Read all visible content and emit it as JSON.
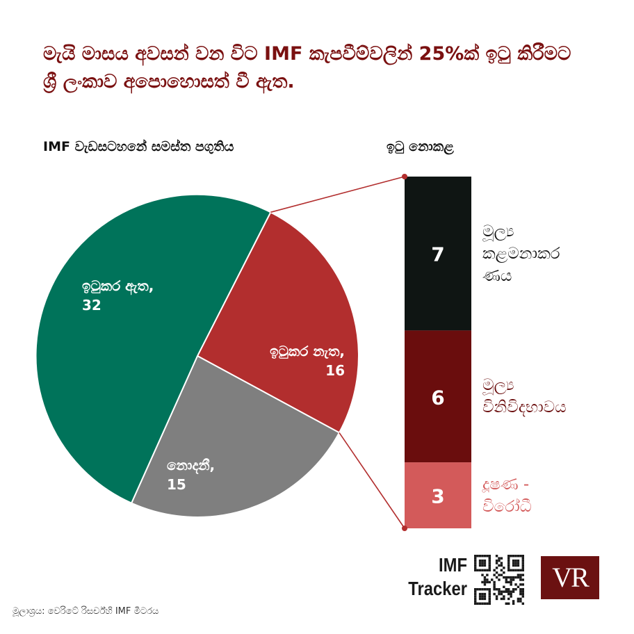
{
  "title": "මැයි මාසය අවසන් වන විට IMF කැපවීම්වලින් 25%ක් ඉටු කිරීමට ශ්‍රී ලංකාව අපොහොසත් වී ඇත.",
  "subtitle_left": "IMF වැඩසටහනේ සමස්ත පගුතිය",
  "subtitle_right": "ඉටු නොකළ",
  "colors": {
    "title": "#7a1010",
    "green": "#00735a",
    "red": "#b22e2e",
    "gray": "#7f7f7f",
    "black": "#0f1513",
    "maroon": "#6a0d0d",
    "salmon": "#d35a5a"
  },
  "chart_data": [
    {
      "type": "pie",
      "title": "IMF වැඩසටහනේ සමස්ත පගුතිය",
      "slices": [
        {
          "label": "ඉටුකර නැත,",
          "value": 16,
          "color": "#b22e2e"
        },
        {
          "label": "නොදනී,",
          "value": 15,
          "color": "#7f7f7f"
        },
        {
          "label": "ඉටුකර ඇත,",
          "value": 32,
          "color": "#00735a"
        }
      ]
    },
    {
      "type": "bar",
      "title": "ඉටු නොකළ",
      "categories": [
        "මූල්‍ය කළමනාකරණය",
        "මූල්‍ය විනිවිදභාවය",
        "දූෂණ - විරෝධී"
      ],
      "values": [
        7,
        6,
        3
      ],
      "colors": [
        "#0f1513",
        "#6a0d0d",
        "#d35a5a"
      ],
      "label_colors": [
        "#111111",
        "#6a0d0d",
        "#d35a5a"
      ],
      "label_lines": [
        [
          "මූල්‍ය",
          "කළමනාකර",
          "ණය"
        ],
        [
          "මූල්‍ය",
          "විනිවිදභාවය"
        ],
        [
          "දූෂණ -",
          "විරෝධී"
        ]
      ]
    }
  ],
  "source": "මූලාශ්‍රය: වෙරිටේ රිසර්ච්හි IMF මීටරය",
  "brand": {
    "line1": "IMF",
    "line2": "Tracker",
    "logo": "VR"
  }
}
